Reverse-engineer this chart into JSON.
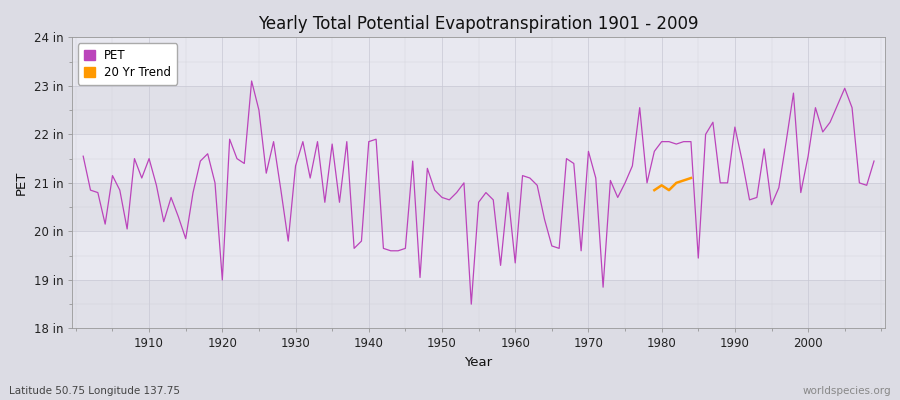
{
  "title": "Yearly Total Potential Evapotranspiration 1901 - 2009",
  "xlabel": "Year",
  "ylabel": "PET",
  "subtitle": "Latitude 50.75 Longitude 137.75",
  "watermark": "worldspecies.org",
  "ylim": [
    18,
    24
  ],
  "yticks": [
    18,
    19,
    20,
    21,
    22,
    23,
    24
  ],
  "ytick_labels": [
    "18 in",
    "19 in",
    "20 in",
    "21 in",
    "22 in",
    "23 in",
    "24 in"
  ],
  "pet_color": "#bb44bb",
  "trend_color": "#ff9900",
  "fig_bg_color": "#dcdce4",
  "plot_bg_color": "#e8e8f0",
  "band_colors": [
    "#e0e0e8",
    "#e8e8f0"
  ],
  "years": [
    1901,
    1902,
    1903,
    1904,
    1905,
    1906,
    1907,
    1908,
    1909,
    1910,
    1911,
    1912,
    1913,
    1914,
    1915,
    1916,
    1917,
    1918,
    1919,
    1920,
    1921,
    1922,
    1923,
    1924,
    1925,
    1926,
    1927,
    1928,
    1929,
    1930,
    1931,
    1932,
    1933,
    1934,
    1935,
    1936,
    1937,
    1938,
    1939,
    1940,
    1941,
    1942,
    1943,
    1944,
    1945,
    1946,
    1947,
    1948,
    1949,
    1950,
    1951,
    1952,
    1953,
    1954,
    1955,
    1956,
    1957,
    1958,
    1959,
    1960,
    1961,
    1962,
    1963,
    1964,
    1965,
    1966,
    1967,
    1968,
    1969,
    1970,
    1971,
    1972,
    1973,
    1974,
    1975,
    1976,
    1977,
    1978,
    1979,
    1980,
    1981,
    1982,
    1983,
    1984,
    1985,
    1986,
    1987,
    1988,
    1989,
    1990,
    1991,
    1992,
    1993,
    1994,
    1995,
    1996,
    1997,
    1998,
    1999,
    2000,
    2001,
    2002,
    2003,
    2004,
    2005,
    2006,
    2007,
    2008,
    2009
  ],
  "pet_values": [
    21.55,
    20.85,
    20.8,
    20.15,
    21.15,
    20.85,
    20.05,
    21.5,
    21.1,
    21.5,
    20.95,
    20.2,
    20.7,
    20.3,
    19.85,
    20.8,
    21.45,
    21.6,
    21.0,
    19.0,
    21.9,
    21.5,
    21.4,
    23.1,
    22.5,
    21.2,
    21.85,
    20.85,
    19.8,
    21.35,
    21.85,
    21.1,
    21.85,
    20.6,
    21.8,
    20.6,
    21.85,
    19.65,
    19.8,
    21.85,
    21.9,
    19.65,
    19.6,
    19.6,
    19.65,
    21.45,
    19.05,
    21.3,
    20.85,
    20.7,
    20.65,
    20.8,
    21.0,
    18.5,
    20.6,
    20.8,
    20.65,
    19.3,
    20.8,
    19.35,
    21.15,
    21.1,
    20.95,
    20.25,
    19.7,
    19.65,
    21.5,
    21.4,
    19.6,
    21.65,
    21.1,
    18.85,
    21.05,
    20.7,
    21.0,
    21.35,
    22.55,
    21.0,
    21.65,
    21.85,
    21.85,
    21.8,
    21.85,
    21.85,
    19.45,
    22.0,
    22.25,
    21.0,
    21.0,
    22.15,
    21.45,
    20.65,
    20.7,
    21.7,
    20.55,
    20.9,
    21.85,
    22.85,
    20.8,
    21.55,
    22.55,
    22.05,
    22.25,
    22.6,
    22.95,
    22.55,
    21.0,
    20.95,
    21.45
  ],
  "trend_years": [
    1979,
    1980,
    1981,
    1982,
    1983,
    1984
  ],
  "trend_values": [
    20.85,
    20.95,
    20.85,
    21.0,
    21.05,
    21.1
  ],
  "xlim": [
    1899.5,
    2010.5
  ]
}
